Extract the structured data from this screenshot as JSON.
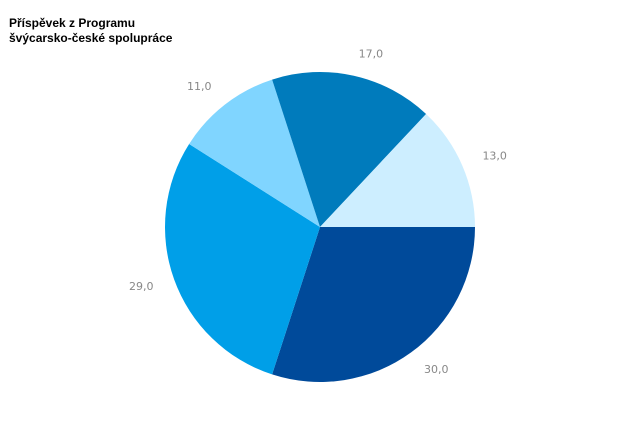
{
  "chart_data": {
    "type": "pie",
    "title": "Příspěvek z Programu švýcarsko-české spolupráce",
    "values": [
      30,
      29,
      11,
      17,
      13
    ],
    "value_labels": [
      "30,0",
      "29,0",
      "11,0",
      "17,0",
      "13,0"
    ],
    "colors": [
      "#004a9a",
      "#009fe8",
      "#80d5ff",
      "#007bbc",
      "#cdeeff"
    ]
  }
}
